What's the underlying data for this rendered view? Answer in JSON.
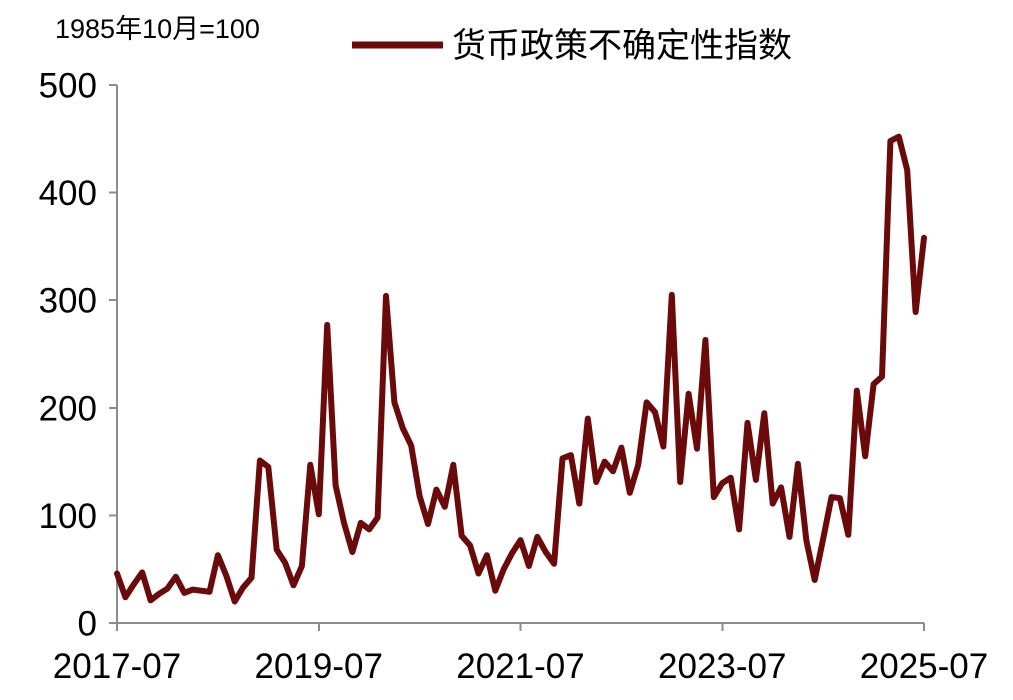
{
  "chart_data": {
    "type": "line",
    "ylabel": "1985年10月=100",
    "ylim": [
      0,
      500
    ],
    "yticks": [
      0,
      100,
      200,
      300,
      400,
      500
    ],
    "xticks": [
      "2017-07",
      "2019-07",
      "2021-07",
      "2023-07",
      "2025-07"
    ],
    "x": [
      "2017-07",
      "2017-08",
      "2017-09",
      "2017-10",
      "2017-11",
      "2017-12",
      "2018-01",
      "2018-02",
      "2018-03",
      "2018-04",
      "2018-05",
      "2018-06",
      "2018-07",
      "2018-08",
      "2018-09",
      "2018-10",
      "2018-11",
      "2018-12",
      "2019-01",
      "2019-02",
      "2019-03",
      "2019-04",
      "2019-05",
      "2019-06",
      "2019-07",
      "2019-08",
      "2019-09",
      "2019-10",
      "2019-11",
      "2019-12",
      "2020-01",
      "2020-02",
      "2020-03",
      "2020-04",
      "2020-05",
      "2020-06",
      "2020-07",
      "2020-08",
      "2020-09",
      "2020-10",
      "2020-11",
      "2020-12",
      "2021-01",
      "2021-02",
      "2021-03",
      "2021-04",
      "2021-05",
      "2021-06",
      "2021-07",
      "2021-08",
      "2021-09",
      "2021-10",
      "2021-11",
      "2021-12",
      "2022-01",
      "2022-02",
      "2022-03",
      "2022-04",
      "2022-05",
      "2022-06",
      "2022-07",
      "2022-08",
      "2022-09",
      "2022-10",
      "2022-11",
      "2022-12",
      "2023-01",
      "2023-02",
      "2023-03",
      "2023-04",
      "2023-05",
      "2023-06",
      "2023-07",
      "2023-08",
      "2023-09",
      "2023-10",
      "2023-11",
      "2023-12",
      "2024-01",
      "2024-02",
      "2024-03",
      "2024-04",
      "2024-05",
      "2024-06",
      "2024-07",
      "2024-08",
      "2024-09",
      "2024-10",
      "2024-11",
      "2024-12",
      "2025-01",
      "2025-02",
      "2025-03",
      "2025-04",
      "2025-05",
      "2025-06",
      "2025-07"
    ],
    "series": [
      {
        "name": "货币政策不确定性指数",
        "color": "#6b0a0a",
        "values": [
          46,
          24,
          36,
          47,
          21,
          27,
          32,
          43,
          28,
          31,
          30,
          29,
          63,
          44,
          20,
          33,
          42,
          151,
          145,
          68,
          56,
          35,
          53,
          147,
          101,
          277,
          128,
          93,
          66,
          93,
          87,
          98,
          304,
          205,
          181,
          165,
          118,
          92,
          124,
          108,
          147,
          81,
          72,
          46,
          63,
          30,
          50,
          65,
          77,
          53,
          80,
          66,
          55,
          153,
          156,
          111,
          190,
          131,
          150,
          141,
          163,
          121,
          147,
          205,
          196,
          164,
          305,
          131,
          213,
          162,
          263,
          117,
          130,
          135,
          87,
          186,
          133,
          195,
          111,
          126,
          80,
          148,
          77,
          40,
          78,
          117,
          116,
          82,
          216,
          155,
          222,
          229,
          448,
          452,
          421,
          289,
          358
        ]
      }
    ],
    "grid": false,
    "legend": "top"
  }
}
